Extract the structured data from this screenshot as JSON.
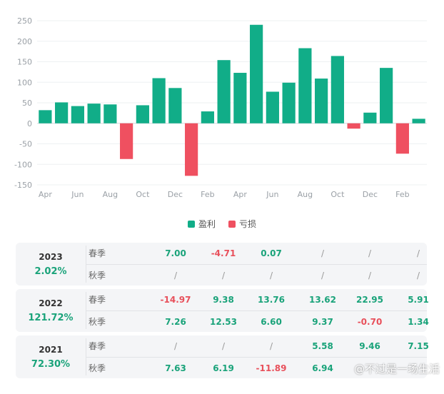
{
  "chart_data": {
    "type": "bar",
    "x": [
      "2022-04",
      "2022-05",
      "2022-06",
      "2022-07",
      "2022-08",
      "2022-09",
      "2022-10",
      "2022-11",
      "2022-12",
      "2023-01",
      "2023-02",
      "2023-03",
      "2023-04",
      "2023-05",
      "2023-06",
      "2023-07",
      "2023-08",
      "2023-09",
      "2023-10",
      "2023-11",
      "2023-12",
      "2024-01",
      "2024-02",
      "2024-03"
    ],
    "values": [
      32,
      51,
      42,
      48,
      46,
      -87,
      44,
      110,
      86,
      -128,
      29,
      154,
      123,
      240,
      77,
      99,
      183,
      109,
      164,
      -13,
      26,
      135,
      -74,
      11
    ],
    "x_tick_labels": [
      "Apr",
      "Jun",
      "Aug",
      "Oct",
      "Dec",
      "Feb",
      "Apr",
      "Jun",
      "Aug",
      "Oct",
      "Dec",
      "Feb"
    ],
    "y_ticks": [
      250,
      200,
      150,
      100,
      50,
      0,
      -50,
      -100,
      -150
    ],
    "ylim": [
      -150,
      250
    ],
    "grid": true,
    "legend": {
      "placement": "bottom",
      "entries": [
        {
          "label": "盈利",
          "color": "#11ad88"
        },
        {
          "label": "亏损",
          "color": "#ef5060"
        }
      ]
    },
    "colors": {
      "positive": "#11ad88",
      "negative": "#ef5060"
    },
    "title": "",
    "xlabel": "",
    "ylabel": ""
  },
  "table": [
    {
      "year": "2023",
      "total": "2.02%",
      "rows": [
        {
          "season": "春季",
          "values": [
            "7.00",
            "-4.71",
            "0.07",
            "/",
            "/",
            "/"
          ]
        },
        {
          "season": "秋季",
          "values": [
            "/",
            "/",
            "/",
            "/",
            "/",
            "/"
          ]
        }
      ]
    },
    {
      "year": "2022",
      "total": "121.72%",
      "rows": [
        {
          "season": "春季",
          "values": [
            "-14.97",
            "9.38",
            "13.76",
            "13.62",
            "22.95",
            "5.91"
          ]
        },
        {
          "season": "秋季",
          "values": [
            "7.26",
            "12.53",
            "6.60",
            "9.37",
            "-0.70",
            "1.34"
          ]
        }
      ]
    },
    {
      "year": "2021",
      "total": "72.30%",
      "rows": [
        {
          "season": "春季",
          "values": [
            "/",
            "/",
            "/",
            "5.58",
            "9.46",
            "7.15"
          ]
        },
        {
          "season": "秋季",
          "values": [
            "7.63",
            "6.19",
            "-11.89",
            "6.94",
            "",
            ""
          ]
        }
      ]
    }
  ],
  "watermark": {
    "text": "@不过是一场生活"
  }
}
